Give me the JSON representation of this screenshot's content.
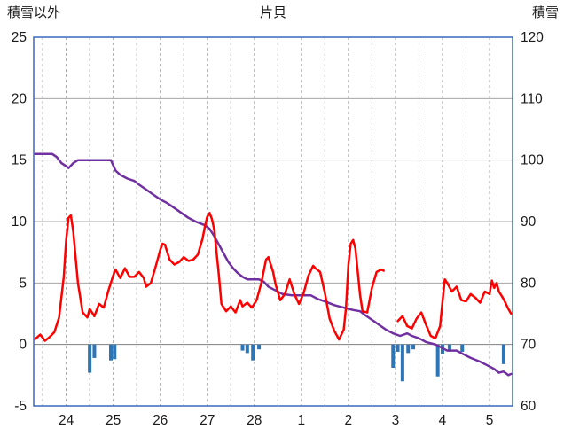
{
  "header": {
    "left_axis_title": "積雪以外",
    "title": "片貝",
    "right_axis_title": "積雪"
  },
  "chart_data": {
    "type": "line",
    "title": "片貝",
    "left_axis": {
      "label": "積雪以外",
      "min": -5,
      "max": 25,
      "ticks": [
        25,
        20,
        15,
        10,
        5,
        0,
        -5
      ]
    },
    "right_axis": {
      "label": "積雪",
      "min": 60,
      "max": 120,
      "ticks": [
        120,
        110,
        100,
        90,
        80,
        70,
        60
      ]
    },
    "x_domain": [
      23.31,
      33.49
    ],
    "x_ticks": [
      {
        "x": 24,
        "label": "24"
      },
      {
        "x": 25,
        "label": "25"
      },
      {
        "x": 26,
        "label": "26"
      },
      {
        "x": 27,
        "label": "27"
      },
      {
        "x": 28,
        "label": "28"
      },
      {
        "x": 29,
        "label": "1"
      },
      {
        "x": 30,
        "label": "2"
      },
      {
        "x": 31,
        "label": "3"
      },
      {
        "x": 32,
        "label": "4"
      },
      {
        "x": 33,
        "label": "5"
      }
    ],
    "grid": {
      "v_from": 23.5,
      "v_to": 33,
      "v_step": 0.5,
      "line_color": "#a6a6a6",
      "zero_color": "#7f7f7f"
    },
    "frame_color": "#4472c4",
    "series": [
      {
        "name": "series-blue-bars",
        "kind": "bar",
        "axis": "left",
        "color": "#2e75b6",
        "points": [
          [
            24.5,
            -2.3
          ],
          [
            24.6,
            -1.1
          ],
          [
            24.95,
            -1.3
          ],
          [
            25.03,
            -1.2
          ],
          [
            27.75,
            -0.5
          ],
          [
            27.85,
            -0.7
          ],
          [
            27.97,
            -1.3
          ],
          [
            28.1,
            -0.4
          ],
          [
            30.95,
            -1.9
          ],
          [
            31.05,
            -0.6
          ],
          [
            31.15,
            -3.0
          ],
          [
            31.27,
            -0.7
          ],
          [
            31.38,
            -0.4
          ],
          [
            31.9,
            -2.6
          ],
          [
            32.0,
            -0.8
          ],
          [
            32.15,
            -0.5
          ],
          [
            32.42,
            -0.6
          ],
          [
            33.3,
            -1.6
          ]
        ]
      },
      {
        "name": "series-purple",
        "kind": "line",
        "axis": "right",
        "color": "#7030a0",
        "points": [
          [
            23.33,
            101
          ],
          [
            23.7,
            101
          ],
          [
            23.8,
            100.5
          ],
          [
            23.9,
            99.5
          ],
          [
            24.0,
            99
          ],
          [
            24.05,
            98.7
          ],
          [
            24.15,
            99.5
          ],
          [
            24.25,
            100
          ],
          [
            24.95,
            100
          ],
          [
            25.05,
            98.3
          ],
          [
            25.15,
            97.6
          ],
          [
            25.3,
            97
          ],
          [
            25.45,
            96.6
          ],
          [
            25.55,
            96
          ],
          [
            25.7,
            95.2
          ],
          [
            25.85,
            94.4
          ],
          [
            26.0,
            93.6
          ],
          [
            26.15,
            93
          ],
          [
            26.3,
            92.2
          ],
          [
            26.45,
            91.4
          ],
          [
            26.6,
            90.6
          ],
          [
            26.75,
            90
          ],
          [
            26.95,
            89.4
          ],
          [
            27.05,
            88.8
          ],
          [
            27.15,
            87.6
          ],
          [
            27.25,
            86.2
          ],
          [
            27.35,
            84.8
          ],
          [
            27.45,
            83.4
          ],
          [
            27.55,
            82.4
          ],
          [
            27.65,
            81.6
          ],
          [
            27.75,
            81
          ],
          [
            27.85,
            80.6
          ],
          [
            28.1,
            80.6
          ],
          [
            28.2,
            80.2
          ],
          [
            28.3,
            79.4
          ],
          [
            28.45,
            78.8
          ],
          [
            28.6,
            78.2
          ],
          [
            28.8,
            78
          ],
          [
            29.2,
            78
          ],
          [
            29.35,
            77.4
          ],
          [
            29.5,
            77
          ],
          [
            29.7,
            76.4
          ],
          [
            29.9,
            76
          ],
          [
            30.1,
            75.6
          ],
          [
            30.25,
            75.4
          ],
          [
            30.35,
            74.8
          ],
          [
            30.5,
            74
          ],
          [
            30.65,
            73.2
          ],
          [
            30.8,
            72.4
          ],
          [
            30.95,
            71.8
          ],
          [
            31.1,
            71.4
          ],
          [
            31.25,
            71.8
          ],
          [
            31.35,
            71.4
          ],
          [
            31.5,
            71
          ],
          [
            31.65,
            70.4
          ],
          [
            31.85,
            70
          ],
          [
            32.0,
            69.4
          ],
          [
            32.1,
            69
          ],
          [
            32.3,
            69
          ],
          [
            32.45,
            68.4
          ],
          [
            32.6,
            67.8
          ],
          [
            32.8,
            67.2
          ],
          [
            32.95,
            66.6
          ],
          [
            33.1,
            66
          ],
          [
            33.2,
            65.4
          ],
          [
            33.3,
            65.6
          ],
          [
            33.4,
            65
          ],
          [
            33.46,
            65.2
          ]
        ]
      },
      {
        "name": "series-red",
        "kind": "line",
        "axis": "left",
        "color": "#ff0000",
        "points": [
          [
            23.33,
            0.4
          ],
          [
            23.45,
            0.8
          ],
          [
            23.55,
            0.3
          ],
          [
            23.65,
            0.6
          ],
          [
            23.75,
            1.0
          ],
          [
            23.85,
            2.2
          ],
          [
            23.95,
            5.5
          ],
          [
            24.0,
            8.5
          ],
          [
            24.05,
            10.3
          ],
          [
            24.1,
            10.5
          ],
          [
            24.15,
            9.2
          ],
          [
            24.25,
            5.0
          ],
          [
            24.35,
            2.6
          ],
          [
            24.45,
            2.2
          ],
          [
            24.5,
            2.9
          ],
          [
            24.6,
            2.3
          ],
          [
            24.7,
            3.3
          ],
          [
            24.8,
            3.0
          ],
          [
            24.9,
            4.4
          ],
          [
            25.0,
            5.6
          ],
          [
            25.05,
            6.1
          ],
          [
            25.15,
            5.4
          ],
          [
            25.25,
            6.2
          ],
          [
            25.35,
            5.5
          ],
          [
            25.45,
            5.5
          ],
          [
            25.55,
            5.9
          ],
          [
            25.65,
            5.4
          ],
          [
            25.7,
            4.7
          ],
          [
            25.8,
            5.0
          ],
          [
            25.9,
            6.3
          ],
          [
            26.0,
            7.7
          ],
          [
            26.05,
            8.2
          ],
          [
            26.1,
            8.1
          ],
          [
            26.2,
            6.9
          ],
          [
            26.3,
            6.5
          ],
          [
            26.4,
            6.7
          ],
          [
            26.5,
            7.1
          ],
          [
            26.6,
            6.8
          ],
          [
            26.7,
            6.9
          ],
          [
            26.8,
            7.3
          ],
          [
            26.9,
            8.6
          ],
          [
            26.95,
            9.6
          ],
          [
            27.0,
            10.4
          ],
          [
            27.05,
            10.7
          ],
          [
            27.1,
            10.2
          ],
          [
            27.15,
            9.3
          ],
          [
            27.25,
            5.5
          ],
          [
            27.3,
            3.3
          ],
          [
            27.4,
            2.7
          ],
          [
            27.5,
            3.1
          ],
          [
            27.6,
            2.6
          ],
          [
            27.7,
            3.6
          ],
          [
            27.75,
            3.1
          ],
          [
            27.85,
            3.4
          ],
          [
            27.95,
            3.0
          ],
          [
            28.05,
            3.6
          ],
          [
            28.15,
            5.0
          ],
          [
            28.25,
            6.9
          ],
          [
            28.3,
            7.1
          ],
          [
            28.4,
            5.9
          ],
          [
            28.45,
            4.9
          ],
          [
            28.55,
            3.6
          ],
          [
            28.65,
            4.1
          ],
          [
            28.75,
            5.3
          ],
          [
            28.85,
            4.1
          ],
          [
            28.95,
            3.3
          ],
          [
            29.05,
            4.2
          ],
          [
            29.15,
            5.6
          ],
          [
            29.25,
            6.4
          ],
          [
            29.3,
            6.2
          ],
          [
            29.4,
            5.9
          ],
          [
            29.5,
            4.2
          ],
          [
            29.6,
            2.1
          ],
          [
            29.7,
            1.1
          ],
          [
            29.8,
            0.4
          ],
          [
            29.9,
            1.2
          ],
          [
            29.95,
            3.0
          ],
          [
            30.0,
            6.5
          ],
          [
            30.05,
            8.2
          ],
          [
            30.1,
            8.5
          ],
          [
            30.15,
            7.8
          ],
          [
            30.25,
            4.0
          ],
          [
            30.3,
            2.7
          ],
          [
            30.4,
            2.6
          ],
          [
            30.5,
            4.6
          ],
          [
            30.6,
            5.9
          ],
          [
            30.7,
            6.1
          ],
          [
            30.75,
            6.0
          ],
          [
            30.8,
            null
          ],
          [
            31.05,
            1.9
          ],
          [
            31.15,
            2.3
          ],
          [
            31.25,
            1.5
          ],
          [
            31.35,
            1.3
          ],
          [
            31.45,
            2.1
          ],
          [
            31.55,
            2.6
          ],
          [
            31.65,
            1.6
          ],
          [
            31.75,
            0.7
          ],
          [
            31.85,
            0.5
          ],
          [
            31.95,
            1.5
          ],
          [
            32.0,
            3.5
          ],
          [
            32.05,
            5.3
          ],
          [
            32.1,
            5.0
          ],
          [
            32.2,
            4.3
          ],
          [
            32.3,
            4.7
          ],
          [
            32.4,
            3.6
          ],
          [
            32.5,
            3.5
          ],
          [
            32.6,
            4.1
          ],
          [
            32.7,
            3.8
          ],
          [
            32.8,
            3.4
          ],
          [
            32.9,
            4.3
          ],
          [
            33.0,
            4.1
          ],
          [
            33.05,
            5.2
          ],
          [
            33.1,
            4.6
          ],
          [
            33.15,
            5.0
          ],
          [
            33.2,
            4.3
          ],
          [
            33.3,
            3.7
          ],
          [
            33.4,
            2.9
          ],
          [
            33.46,
            2.5
          ]
        ]
      }
    ]
  }
}
